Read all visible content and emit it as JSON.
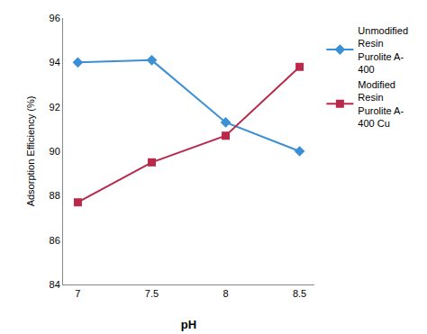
{
  "chart_data": {
    "type": "line",
    "x": [
      7,
      7.5,
      8,
      8.5
    ],
    "series": [
      {
        "name": "Unmodified\nResin\nPurolite A-\n400",
        "color": "#3B8FD4",
        "marker": "diamond",
        "values": [
          94.0,
          94.1,
          91.3,
          90.0
        ]
      },
      {
        "name": "Modified\nResin\nPurolite A-\n400 Cu",
        "color": "#B8294A",
        "marker": "square",
        "values": [
          87.7,
          89.5,
          90.7,
          93.8
        ]
      }
    ],
    "xlabel": "pH",
    "ylabel": "Adsorption Efficiency (%)",
    "xlim": [
      6.9,
      8.6
    ],
    "xticks": [
      7,
      7.5,
      8,
      8.5
    ],
    "ylim": [
      84,
      96
    ],
    "yticks": [
      84,
      86,
      88,
      90,
      92,
      94,
      96
    ],
    "grid": false,
    "legend": "right"
  }
}
